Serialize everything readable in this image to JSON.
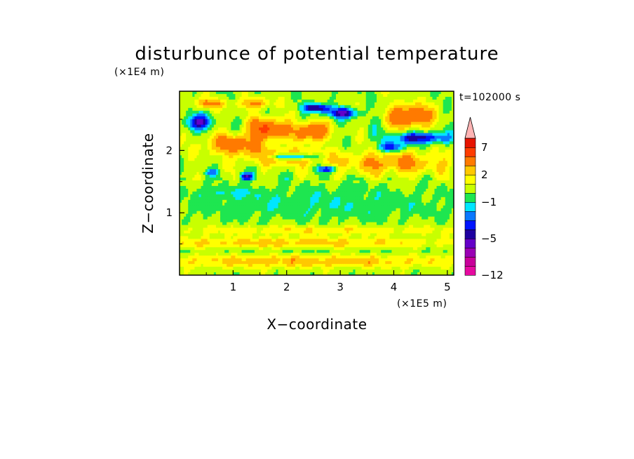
{
  "chart_data": {
    "type": "heatmap",
    "title": "disturbunce of potential temperature",
    "xlabel": "X−coordinate",
    "ylabel": "Z−coordinate",
    "x_unit": "(×1E5 m)",
    "y_unit": "(×1E4 m)",
    "time_label": "t=102000 s",
    "xlim": [
      0,
      5.12
    ],
    "ylim": [
      0,
      2.95
    ],
    "x_ticks": [
      1,
      2,
      3,
      4,
      5
    ],
    "x_tick_labels": [
      "1",
      "2",
      "3",
      "4",
      "5"
    ],
    "y_ticks": [
      1,
      2
    ],
    "y_tick_labels": [
      "1",
      "2"
    ],
    "colorbar": {
      "levels": [
        -12,
        -10,
        -8,
        -6,
        -5,
        -4,
        -3,
        -2,
        -1,
        0,
        1,
        2,
        3,
        5,
        7,
        9,
        11
      ],
      "labeled": [
        -12,
        -5,
        -1,
        2,
        7
      ],
      "labels": [
        "−12",
        "−5",
        "−1",
        "2",
        "7"
      ],
      "colors": [
        "#e60aa0",
        "#c8009a",
        "#9a00b4",
        "#6400c8",
        "#1e00a0",
        "#0014ff",
        "#0a78ff",
        "#00e6ff",
        "#1ee650",
        "#c8ff00",
        "#ffff00",
        "#ffc800",
        "#ff7a00",
        "#ff3c00",
        "#e61400",
        "#ffb4b4"
      ],
      "extend": "max"
    },
    "features": [
      {
        "x": 2.55,
        "z": 1.15,
        "dx": 2.7,
        "dz": 0.28,
        "v": -1.2
      },
      {
        "x": 0.9,
        "z": 1.32,
        "dx": 0.6,
        "dz": 0.08,
        "v": -1.1
      },
      {
        "x": 2.4,
        "z": 0.72,
        "dx": 3.0,
        "dz": 0.07,
        "v": 1.6
      },
      {
        "x": 2.0,
        "z": 0.52,
        "dx": 3.0,
        "dz": 0.08,
        "v": 2.2
      },
      {
        "x": 2.3,
        "z": 0.22,
        "dx": 3.2,
        "dz": 0.1,
        "v": 2.3
      },
      {
        "x": 2.2,
        "z": 0.38,
        "dx": 2.8,
        "dz": 0.04,
        "v": -0.6
      },
      {
        "x": 4.3,
        "z": 2.55,
        "dx": 0.4,
        "dz": 0.18,
        "v": 5.0
      },
      {
        "x": 4.0,
        "z": 1.8,
        "dx": 1.0,
        "dz": 0.18,
        "v": 3.0
      },
      {
        "x": 4.5,
        "z": 2.2,
        "dx": 0.55,
        "dz": 0.09,
        "v": -5.0
      },
      {
        "x": 3.95,
        "z": 2.05,
        "dx": 0.22,
        "dz": 0.08,
        "v": -4.5
      },
      {
        "x": 1.95,
        "z": 1.9,
        "dx": 0.8,
        "dz": 0.14,
        "v": 2.8
      },
      {
        "x": 1.65,
        "z": 2.35,
        "dx": 0.35,
        "dz": 0.17,
        "v": 5.0
      },
      {
        "x": 2.45,
        "z": 2.3,
        "dx": 0.3,
        "dz": 0.14,
        "v": 5.2
      },
      {
        "x": 1.0,
        "z": 2.1,
        "dx": 0.55,
        "dz": 0.16,
        "v": 3.5
      },
      {
        "x": 2.1,
        "z": 1.9,
        "dx": 0.45,
        "dz": 0.05,
        "v": -5.0
      },
      {
        "x": 2.75,
        "z": 1.7,
        "dx": 0.18,
        "dz": 0.05,
        "v": -4.5
      },
      {
        "x": 0.35,
        "z": 2.45,
        "dx": 0.25,
        "dz": 0.12,
        "v": -5.0
      },
      {
        "x": 1.25,
        "z": 1.58,
        "dx": 0.12,
        "dz": 0.06,
        "v": -5.0
      },
      {
        "x": 0.6,
        "z": 1.65,
        "dx": 0.12,
        "dz": 0.05,
        "v": -2.5
      },
      {
        "x": 2.55,
        "z": 2.68,
        "dx": 0.25,
        "dz": 0.07,
        "v": -5.5
      },
      {
        "x": 3.05,
        "z": 2.6,
        "dx": 0.3,
        "dz": 0.08,
        "v": -5.0
      },
      {
        "x": 3.6,
        "z": 2.4,
        "dx": 0.12,
        "dz": 0.2,
        "v": -0.6
      },
      {
        "x": 1.4,
        "z": 2.75,
        "dx": 0.3,
        "dz": 0.08,
        "v": 3.0
      },
      {
        "x": 0.55,
        "z": 2.75,
        "dx": 0.3,
        "dz": 0.08,
        "v": 3.0
      }
    ]
  }
}
